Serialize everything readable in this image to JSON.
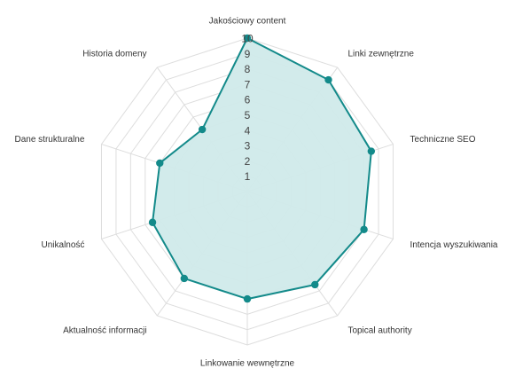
{
  "chart_data": {
    "type": "radar",
    "categories": [
      "Jakościowy content",
      "Linki zewnętrzne",
      "Techniczne SEO",
      "Intencja wyszukiwania",
      "Topical authority",
      "Linkowanie wewnętrzne",
      "Aktualność informacji",
      "Unikalność",
      "Dane strukturalne",
      "Historia domeny"
    ],
    "series": [
      {
        "values": [
          10,
          9,
          8.5,
          8,
          7.5,
          7,
          7,
          6.5,
          6,
          5
        ]
      }
    ],
    "rlim": [
      0,
      10
    ],
    "ticks": [
      "1",
      "2",
      "3",
      "4",
      "5",
      "6",
      "7",
      "8",
      "9",
      "10"
    ],
    "grid": true,
    "legend": "none",
    "colors": {
      "line": "#138a8a",
      "fill": "#d0eaea",
      "grid": "#dddddd",
      "point": "#138a8a"
    }
  }
}
